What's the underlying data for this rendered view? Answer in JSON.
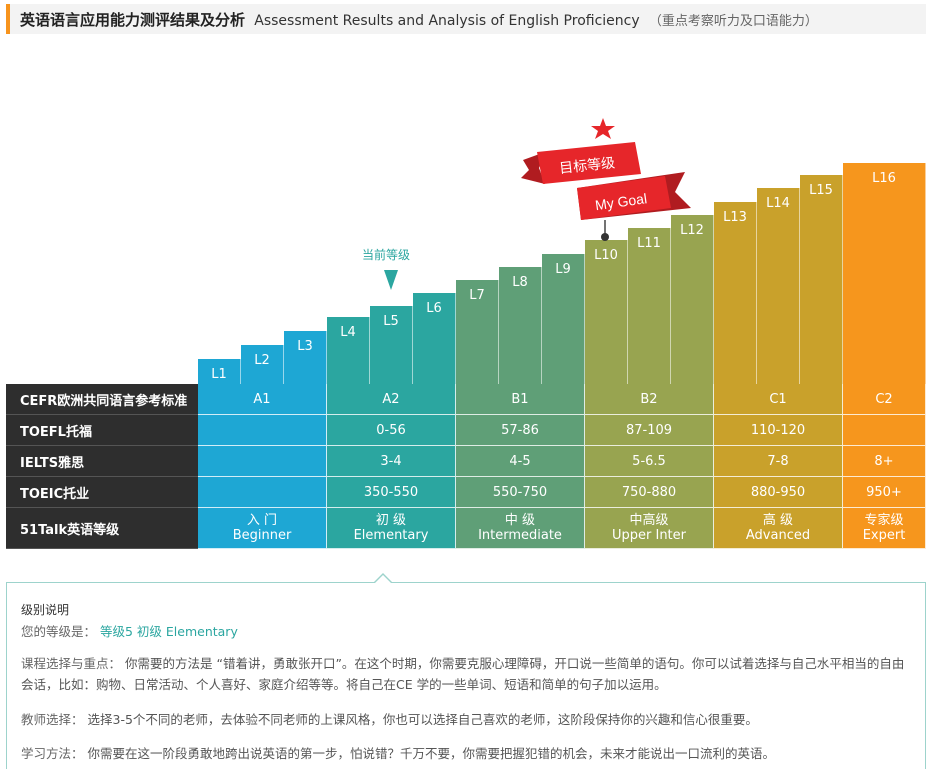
{
  "header": {
    "title": "英语语言应用能力测评结果及分析",
    "title_en": "Assessment Results and Analysis of English Proficiency",
    "note": "（重点考察听力及口语能力）"
  },
  "levels": [
    "L1",
    "L2",
    "L3",
    "L4",
    "L5",
    "L6",
    "L7",
    "L8",
    "L9",
    "L10",
    "L11",
    "L12",
    "L13",
    "L14",
    "L15",
    "L16"
  ],
  "markers": {
    "current_label": "当前等级",
    "goal_cn": "目标等级",
    "goal_en": "My Goal",
    "current_level": "L5",
    "goal_level": "L10"
  },
  "colors": {
    "A1": "#1ea7d4",
    "A2": "#2ba6a0",
    "B1": "#5f9f77",
    "B2": "#98a450",
    "C1": "#c9a12b",
    "C2": "#f6961d",
    "goal_red": "#e6262a"
  },
  "table": {
    "row_labels": [
      "CEFR欧洲共同语言参考标准",
      "TOEFL托福",
      "IELTS雅思",
      "TOEIC托业",
      "51Talk英语等级"
    ],
    "cefr": [
      "A1",
      "A2",
      "B1",
      "B2",
      "C1",
      "C2"
    ],
    "toefl": [
      "",
      "0-56",
      "57-86",
      "87-109",
      "110-120",
      ""
    ],
    "ielts": [
      "",
      "3-4",
      "4-5",
      "5-6.5",
      "7-8",
      "8+"
    ],
    "toeic": [
      "",
      "350-550",
      "550-750",
      "750-880",
      "880-950",
      "950+"
    ],
    "talk_cn": [
      "入 门",
      "初 级",
      "中 级",
      "中高级",
      "高 级",
      "专家级"
    ],
    "talk_en": [
      "Beginner",
      "Elementary",
      "Intermediate",
      "Upper Inter",
      "Advanced",
      "Expert"
    ]
  },
  "panel": {
    "title": "级别说明",
    "level_label": "您的等级是：",
    "level_value": "等级5 初级 Elementary",
    "course_label": "课程选择与重点：",
    "course_text": "你需要的方法是 “错着讲，勇敢张开口”。在这个时期，你需要克服心理障碍，开口说一些简单的语句。你可以试着选择与自己水平相当的自由会话，比如：购物、日常活动、个人喜好、家庭介绍等等。将自己在CE 学的一些单词、短语和简单的句子加以运用。",
    "teacher_label": "教师选择：",
    "teacher_text": "选择3-5个不同的老师，去体验不同老师的上课风格，你也可以选择自己喜欢的老师，这阶段保持你的兴趣和信心很重要。",
    "method_label": "学习方法：",
    "method_text": "你需要在这一阶段勇敢地跨出说英语的第一步，怕说错？千万不要，你需要把握犯错的机会，未来才能说出一口流利的英语。"
  }
}
